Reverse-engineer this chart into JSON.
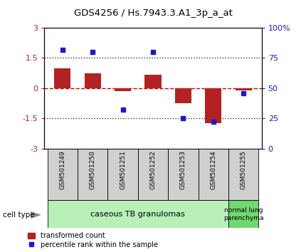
{
  "title": "GDS4256 / Hs.7943.3.A1_3p_a_at",
  "samples": [
    "GSM501249",
    "GSM501250",
    "GSM501251",
    "GSM501252",
    "GSM501253",
    "GSM501254",
    "GSM501255"
  ],
  "transformed_count": [
    1.0,
    0.75,
    -0.15,
    0.65,
    -0.75,
    -1.75,
    -0.1
  ],
  "percentile_rank": [
    82,
    80,
    32,
    80,
    25,
    22,
    46
  ],
  "ylim_left": [
    -3,
    3
  ],
  "ylim_right": [
    0,
    100
  ],
  "yticks_left": [
    -3,
    -1.5,
    0,
    1.5,
    3
  ],
  "yticks_right": [
    0,
    25,
    50,
    75,
    100
  ],
  "ytick_labels_right": [
    "0",
    "25",
    "50",
    "75",
    "100%"
  ],
  "bar_color": "#b22222",
  "dot_color": "#1a1acd",
  "zero_line_color": "#cc0000",
  "dotted_line_color": "#333333",
  "group1_samples_count": 6,
  "group2_samples_count": 1,
  "group1_label": "caseous TB granulomas",
  "group2_label": "normal lung\nparenchyma",
  "group1_color": "#b8f0b8",
  "group2_color": "#70d870",
  "cell_type_label": "cell type",
  "legend_bar_label": "transformed count",
  "legend_dot_label": "percentile rank within the sample",
  "background_color": "#ffffff",
  "plot_bg_color": "#ffffff",
  "sample_box_color": "#d0d0d0"
}
